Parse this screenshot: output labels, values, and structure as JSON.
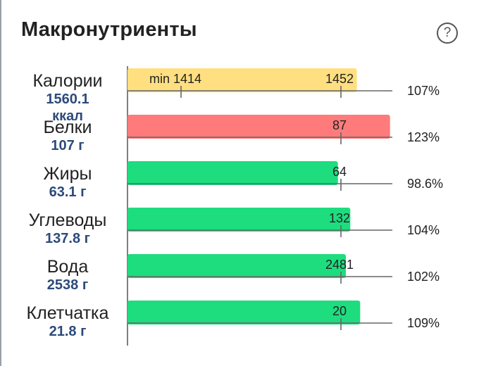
{
  "header": {
    "title": "Макронутриенты",
    "help_icon": "question-circle-icon",
    "help_glyph": "?"
  },
  "chart_data": {
    "type": "bar",
    "orientation": "horizontal",
    "colors": {
      "over": "#ff7b7b",
      "ok": "#1ddd7f",
      "calories": "#ffdf80"
    },
    "rows": [
      {
        "name": "Калории",
        "value_lines": [
          "1560.1",
          "ккал"
        ],
        "value": 1560.1,
        "target": 1452,
        "target_label": "1452",
        "min": 1414,
        "min_label": "min 1414",
        "percent": "107%",
        "status": "calories"
      },
      {
        "name": "Белки",
        "value_lines": [
          "107 г"
        ],
        "value": 107,
        "target": 87,
        "target_label": "87",
        "percent": "123%",
        "status": "over"
      },
      {
        "name": "Жиры",
        "value_lines": [
          "63.1 г"
        ],
        "value": 63.1,
        "target": 64,
        "target_label": "64",
        "percent": "98.6%",
        "status": "ok"
      },
      {
        "name": "Углеводы",
        "value_lines": [
          "137.8 г"
        ],
        "value": 137.8,
        "target": 132,
        "target_label": "132",
        "percent": "104%",
        "status": "ok"
      },
      {
        "name": "Вода",
        "value_lines": [
          "2538 г"
        ],
        "value": 2538,
        "target": 2481,
        "target_label": "2481",
        "percent": "102%",
        "status": "ok"
      },
      {
        "name": "Клетчатка",
        "value_lines": [
          "21.8 г"
        ],
        "value": 21.8,
        "target": 20,
        "target_label": "20",
        "percent": "109%",
        "status": "ok"
      }
    ]
  }
}
